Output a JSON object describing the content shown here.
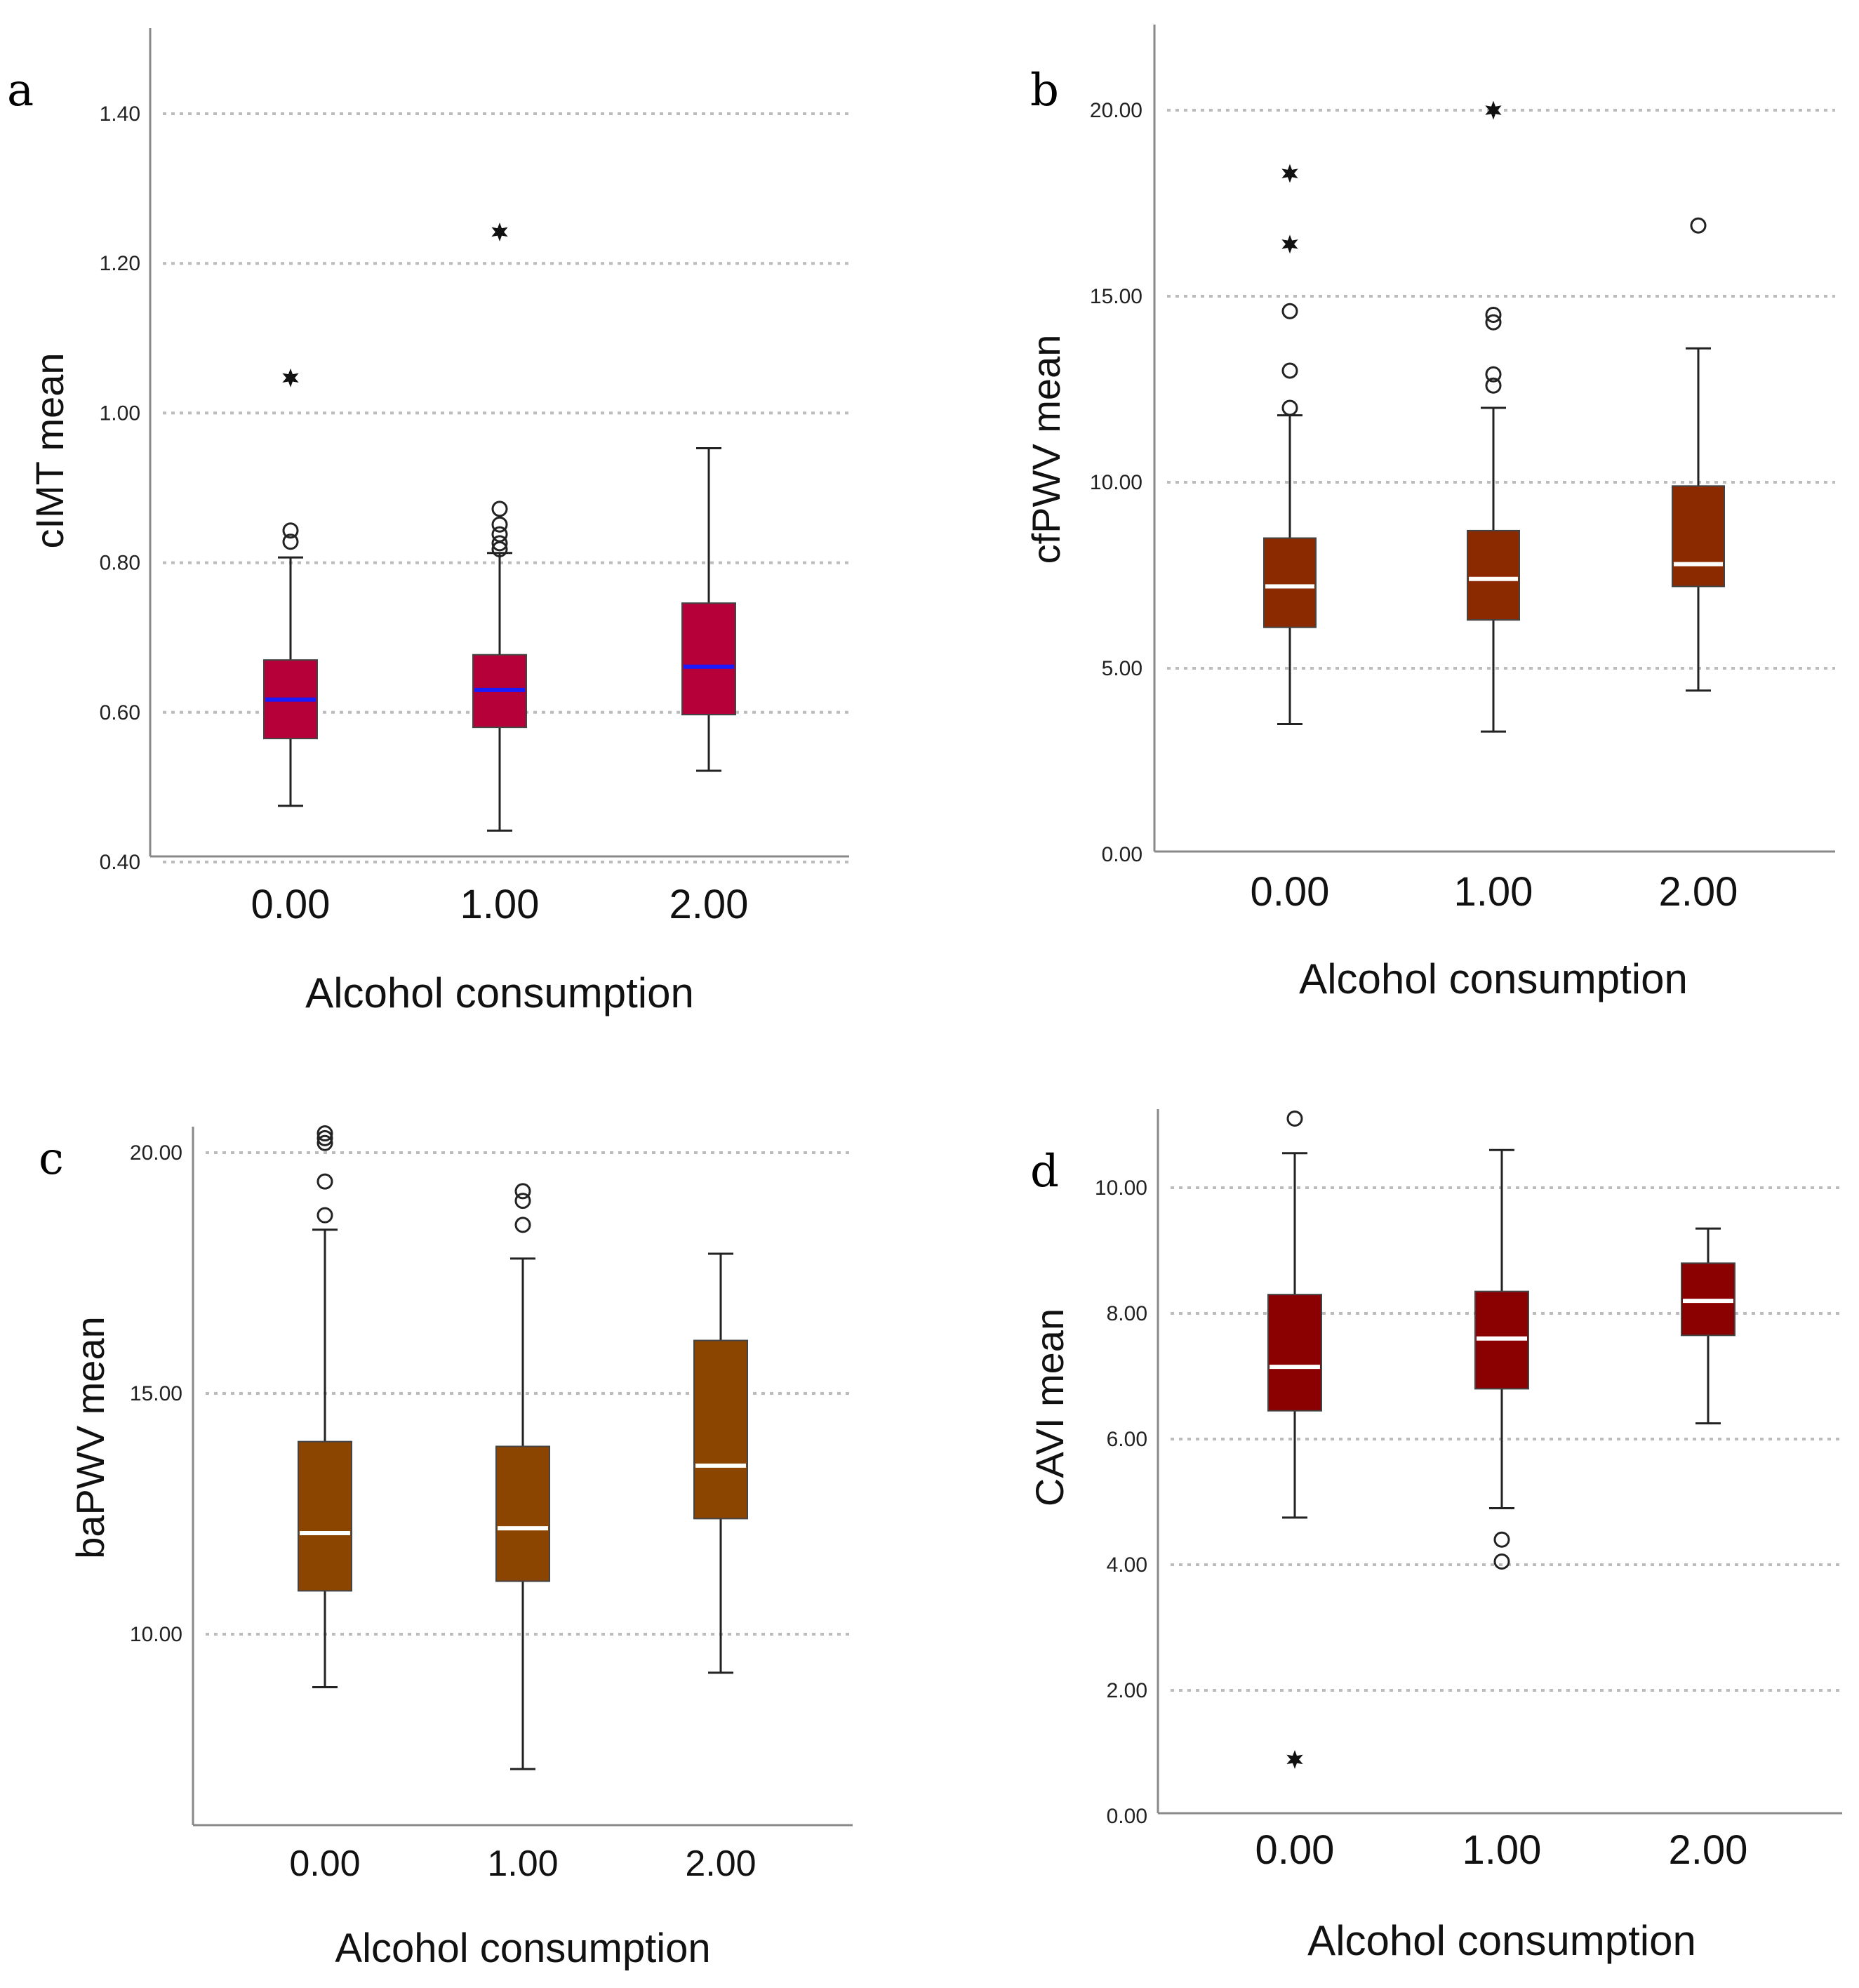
{
  "figure": {
    "panels_order": [
      "a",
      "b",
      "c",
      "d"
    ]
  },
  "chart_data": [
    {
      "panel": "a",
      "type": "box",
      "xlabel": "Alcohol consumption",
      "ylabel": "cIMT mean",
      "categories": [
        "0.00",
        "1.00",
        "2.00"
      ],
      "ylim": [
        0.4,
        1.5
      ],
      "yticks": [
        0.4,
        0.6,
        0.8,
        1.0,
        1.2,
        1.4
      ],
      "ytick_labels": [
        "0.40",
        "0.60",
        "0.80",
        "1.00",
        "1.20",
        "1.40"
      ],
      "grid": true,
      "box_color": "#b5003a",
      "median_color": "#1a1aff",
      "boxes": [
        {
          "category": "0.00",
          "whisker_low": 0.475,
          "q1": 0.565,
          "median": 0.617,
          "q3": 0.67,
          "whisker_high": 0.807,
          "outliers": [
            0.828,
            0.843
          ],
          "extremes": [
            1.047
          ]
        },
        {
          "category": "1.00",
          "whisker_low": 0.442,
          "q1": 0.58,
          "median": 0.63,
          "q3": 0.677,
          "whisker_high": 0.813,
          "outliers": [
            0.818,
            0.826,
            0.838,
            0.851,
            0.872
          ],
          "extremes": [
            1.242
          ]
        },
        {
          "category": "2.00",
          "whisker_low": 0.522,
          "q1": 0.597,
          "median": 0.661,
          "q3": 0.746,
          "whisker_high": 0.953,
          "outliers": [],
          "extremes": []
        }
      ]
    },
    {
      "panel": "b",
      "type": "box",
      "xlabel": "Alcohol consumption",
      "ylabel": "cfPWV mean",
      "categories": [
        "0.00",
        "1.00",
        "2.00"
      ],
      "ylim": [
        0,
        22.5
      ],
      "yticks": [
        0,
        5,
        10,
        15,
        20
      ],
      "ytick_labels": [
        "0.00",
        "5.00",
        "10.00",
        "15.00",
        "20.00"
      ],
      "grid": true,
      "box_color": "#8b2a00",
      "median_color": "#ffffff",
      "boxes": [
        {
          "category": "0.00",
          "whisker_low": 3.5,
          "q1": 6.1,
          "median": 7.2,
          "q3": 8.5,
          "whisker_high": 11.8,
          "outliers": [
            12.0,
            13.0,
            14.6
          ],
          "extremes": [
            16.4,
            18.3
          ]
        },
        {
          "category": "1.00",
          "whisker_low": 3.3,
          "q1": 6.3,
          "median": 7.4,
          "q3": 8.7,
          "whisker_high": 12.0,
          "outliers": [
            12.6,
            12.9,
            14.3,
            14.5
          ],
          "extremes": [
            20.0
          ]
        },
        {
          "category": "2.00",
          "whisker_low": 4.4,
          "q1": 7.2,
          "median": 7.8,
          "q3": 9.9,
          "whisker_high": 13.6,
          "outliers": [
            16.9
          ],
          "extremes": []
        }
      ]
    },
    {
      "panel": "c",
      "type": "box",
      "xlabel": "Alcohol consumption",
      "ylabel": "baPWV mean",
      "categories": [
        "0.00",
        "1.00",
        "2.00"
      ],
      "ylim": [
        6.0,
        20.5
      ],
      "yticks": [
        10,
        15,
        20
      ],
      "ytick_labels": [
        "10.00",
        "15.00",
        "20.00"
      ],
      "grid": true,
      "box_color": "#8b4500",
      "median_color": "#ffffff",
      "boxes": [
        {
          "category": "0.00",
          "whisker_low": 8.9,
          "q1": 10.9,
          "median": 12.1,
          "q3": 14.0,
          "whisker_high": 18.4,
          "outliers": [
            18.7,
            19.4,
            20.2,
            20.3,
            20.4
          ],
          "extremes": []
        },
        {
          "category": "1.00",
          "whisker_low": 7.2,
          "q1": 11.1,
          "median": 12.2,
          "q3": 13.9,
          "whisker_high": 17.8,
          "outliers": [
            18.5,
            19.0,
            19.2
          ],
          "extremes": []
        },
        {
          "category": "2.00",
          "whisker_low": 9.2,
          "q1": 12.4,
          "median": 13.5,
          "q3": 16.1,
          "whisker_high": 17.9,
          "outliers": [],
          "extremes": []
        }
      ]
    },
    {
      "panel": "d",
      "type": "box",
      "xlabel": "Alcohol consumption",
      "ylabel": "CAVI mean",
      "categories": [
        "0.00",
        "1.00",
        "2.00"
      ],
      "ylim": [
        0,
        11.2
      ],
      "yticks": [
        0,
        2,
        4,
        6,
        8,
        10
      ],
      "ytick_labels": [
        "0.00",
        "2.00",
        "4.00",
        "6.00",
        "8.00",
        "10.00"
      ],
      "grid": true,
      "box_color": "#8b0000",
      "median_color": "#ffffff",
      "boxes": [
        {
          "category": "0.00",
          "whisker_low": 4.75,
          "q1": 6.45,
          "median": 7.15,
          "q3": 8.3,
          "whisker_high": 10.55,
          "outliers": [
            11.1
          ],
          "extremes": [
            0.9
          ]
        },
        {
          "category": "1.00",
          "whisker_low": 4.9,
          "q1": 6.8,
          "median": 7.6,
          "q3": 8.35,
          "whisker_high": 10.6,
          "outliers": [
            4.05,
            4.4
          ],
          "extremes": []
        },
        {
          "category": "2.00",
          "whisker_low": 6.25,
          "q1": 7.65,
          "median": 8.2,
          "q3": 8.8,
          "whisker_high": 9.35,
          "outliers": [],
          "extremes": []
        }
      ]
    }
  ]
}
